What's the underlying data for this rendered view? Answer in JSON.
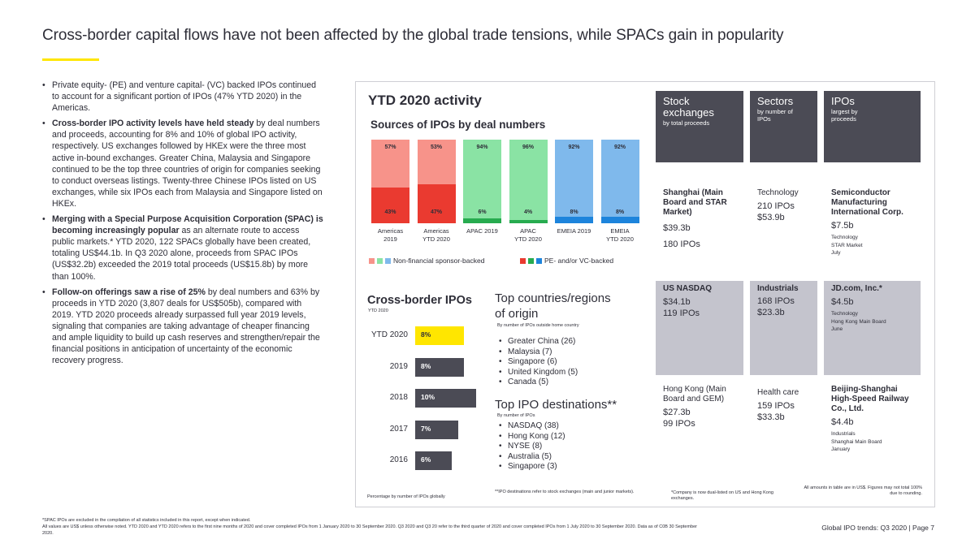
{
  "title": "Cross-border capital flows have not been affected by the global trade tensions, while SPACs gain in popularity",
  "bullets": [
    {
      "bold": "",
      "text": "Private equity- (PE) and venture capital- (VC) backed IPOs continued to account for a significant portion of IPOs (47% YTD 2020) in the Americas."
    },
    {
      "bold": "Cross-border IPO activity levels have held steady",
      "text": " by deal numbers and proceeds, accounting for 8% and 10% of global IPO activity, respectively. US exchanges followed by HKEx were the three most active in-bound exchanges. Greater China, Malaysia and Singapore continued to be the top three countries of origin for companies seeking to conduct overseas listings. Twenty-three Chinese IPOs listed on US exchanges, while six IPOs each from Malaysia and Singapore listed on HKEx."
    },
    {
      "bold": "Merging with a Special Purpose Acquisition Corporation (SPAC) is becoming increasingly popular",
      "text": " as an alternate route to access public markets.* YTD 2020, 122 SPACs globally have been created, totaling US$44.1b. In Q3 2020 alone, proceeds from SPAC IPOs (US$32.2b) exceeded the 2019 total proceeds (US$15.8b) by more than 100%."
    },
    {
      "bold": "Follow-on offerings saw a rise of 25%",
      "text": " by deal numbers and 63% by proceeds in YTD 2020 (3,807 deals for US$505b), compared with 2019. YTD 2020 proceeds already surpassed full year 2019 levels, signaling that companies are taking advantage of cheaper financing and ample liquidity to build up cash reserves and strengthen/repair the financial positions in anticipation of uncertainty of the economic recovery progress."
    }
  ],
  "activity_title": "YTD 2020 activity",
  "sources_title": "Sources of IPOs by deal numbers",
  "legend": {
    "non_fin": "Non-financial sponsor-backed",
    "pe_vc": "PE- and/or VC-backed"
  },
  "colors": {
    "americas_top": "#f7938a",
    "americas_bot": "#ea3a30",
    "apac_top": "#8ae3a4",
    "apac_bot": "#27ab4f",
    "emeia_top": "#7fb9ec",
    "emeia_bot": "#1d84dc",
    "yellow": "#ffe600",
    "dark": "#4b4b55",
    "gray": "#c4c4cd",
    "grey_bar": "#4b4b55"
  },
  "chart_data": [
    {
      "type": "bar",
      "stacked": true,
      "title": "Sources of IPOs by deal numbers",
      "categories": [
        [
          "Americas",
          "2019"
        ],
        [
          "Americas",
          "YTD 2020"
        ],
        [
          "APAC 2019",
          ""
        ],
        [
          "APAC",
          "YTD 2020"
        ],
        [
          "EMEIA 2019",
          ""
        ],
        [
          "EMEIA",
          "YTD 2020"
        ]
      ],
      "series": [
        {
          "name": "Non-financial sponsor-backed",
          "values": [
            57,
            53,
            94,
            96,
            92,
            92
          ],
          "labels": [
            "57%",
            "53%",
            "94%",
            "96%",
            "92%",
            "92%"
          ]
        },
        {
          "name": "PE- and/or VC-backed",
          "values": [
            43,
            47,
            6,
            4,
            8,
            8
          ],
          "labels": [
            "43%",
            "47%",
            "6%",
            "4%",
            "8%",
            "8%"
          ]
        }
      ],
      "ylim": [
        0,
        100
      ]
    },
    {
      "type": "bar",
      "orientation": "horizontal",
      "title": "Cross-border IPOs",
      "subtitle": "YTD 2020",
      "categories": [
        "YTD 2020",
        "2019",
        "2018",
        "2017",
        "2016"
      ],
      "values": [
        8,
        8,
        10,
        7,
        6
      ],
      "labels": [
        "8%",
        "8%",
        "10%",
        "7%",
        "6%"
      ],
      "footnote": "Percentage by number of IPOs globally"
    }
  ],
  "top_countries": {
    "title_line1": "Top countries/regions",
    "title_line2": "of origin",
    "subtitle": "By number of IPOs outside home country",
    "items": [
      "Greater China (26)",
      "Malaysia (7)",
      "Singapore (6)",
      "United Kingdom (5)",
      "Canada (5)"
    ]
  },
  "top_destinations": {
    "title": "Top IPO destinations**",
    "subtitle": "By number of IPOs",
    "items": [
      "NASDAQ (38)",
      "Hong Kong (12)",
      "NYSE (8)",
      "Australia (5)",
      "Singapore (3)"
    ],
    "footnote": "**IPO destinations refer to stock exchanges (main and junior markets)."
  },
  "table": {
    "headers": [
      {
        "title": "Stock exchanges",
        "sub": "by total proceeds"
      },
      {
        "title": "Sectors",
        "sub": "by number of IPOs"
      },
      {
        "title": "IPOs",
        "sub": "largest by proceeds"
      }
    ],
    "exchanges": [
      {
        "name": "Shanghai (Main Board and STAR Market)",
        "proceeds": "$39.3b",
        "ipos": "180 IPOs"
      },
      {
        "name": "US NASDAQ",
        "proceeds": "$34.1b",
        "ipos": "119 IPOs"
      },
      {
        "name": "Hong Kong (Main Board and GEM)",
        "proceeds": "$27.3b",
        "ipos": "99 IPOs"
      }
    ],
    "sectors": [
      {
        "name": "Technology",
        "ipos": "210 IPOs",
        "proceeds": "$53.9b"
      },
      {
        "name": "Industrials",
        "ipos": "168 IPOs",
        "proceeds": "$23.3b"
      },
      {
        "name": "Health care",
        "ipos": "159 IPOs",
        "proceeds": "$33.3b"
      }
    ],
    "ipos": [
      {
        "name": "Semiconductor Manufacturing International Corp.",
        "proceeds": "$7.5b",
        "sector": "Technology",
        "market": "STAR Market",
        "month": "July"
      },
      {
        "name": "JD.com, Inc.*",
        "proceeds": "$4.5b",
        "sector": "Technology",
        "market": "Hong Kong Main Board",
        "month": "June"
      },
      {
        "name": "Beijing-Shanghai High-Speed Railway Co., Ltd.",
        "proceeds": "$4.4b",
        "sector": "Industrials",
        "market": "Shanghai Main Board",
        "month": "January"
      }
    ],
    "note_company": "*Company is now dual-listed on US and Hong Kong exchanges.",
    "note_amounts": "All amounts in table are in US$. Figures may not total 100% due to rounding."
  },
  "footnote": "*SPAC IPOs are excluded in the compilation of all statistics included in this report, except when indicated.",
  "footnote2": "All values are US$ unless otherwise noted. YTD 2020 and YTD 2020 refers to the first nine months of 2020 and cover completed IPOs from 1 January 2020 to 30 September 2020. Q3 2020 and Q3 20 refer to the third quarter of 2020 and cover completed IPOs from 1 July 2020 to 30 September 2020. Data as of C0B 30 September 2020.",
  "page_label": "Global IPO trends: Q3 2020 | Page 7"
}
